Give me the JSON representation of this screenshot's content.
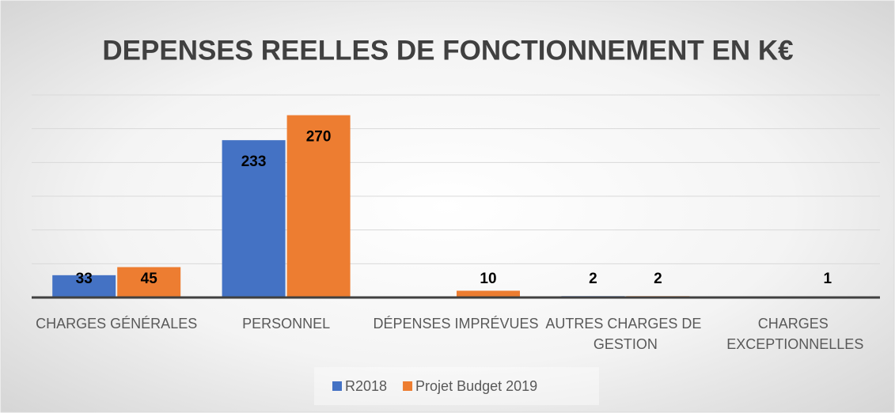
{
  "chart_data": {
    "type": "bar",
    "title": "DEPENSES REELLES DE FONCTIONNEMENT EN K€",
    "categories": [
      "CHARGES GÉNÉRALES",
      "PERSONNEL",
      "DÉPENSES IMPRÉVUES",
      "AUTRES CHARGES DE GESTION",
      "CHARGES EXCEPTIONNELLES"
    ],
    "series": [
      {
        "name": "R2018",
        "color": "#4472c4",
        "values": [
          33,
          233,
          null,
          2,
          null
        ]
      },
      {
        "name": "Projet Budget 2019",
        "color": "#ed7d31",
        "values": [
          45,
          270,
          10,
          2,
          1
        ]
      }
    ],
    "ylim": [
      0,
      300
    ],
    "yticks": [
      0,
      50,
      100,
      150,
      200,
      250,
      300
    ],
    "grid": true,
    "legend": "bottom"
  }
}
